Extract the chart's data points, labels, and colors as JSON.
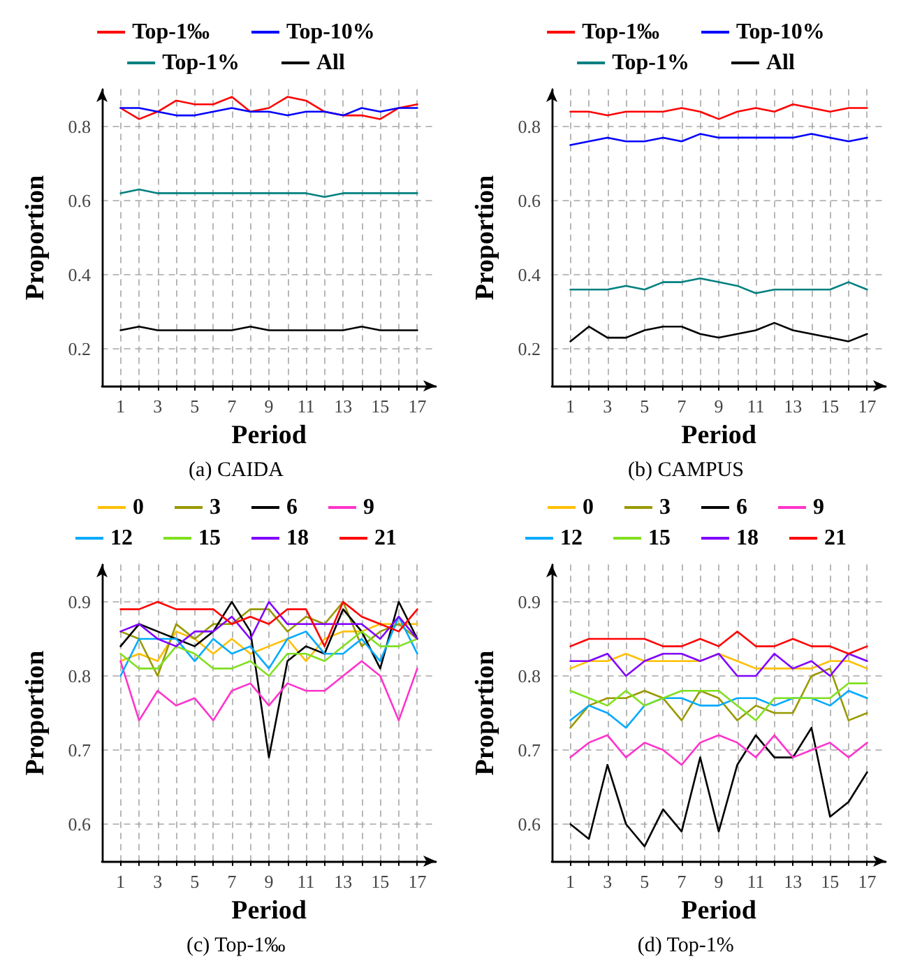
{
  "chart_data": [
    {
      "type": "line",
      "xlabel": "Period",
      "ylabel": "Proportion",
      "annotations": [
        "(a) CAIDA"
      ],
      "xlim": [
        0,
        18
      ],
      "xticks": [
        1,
        {
          "value": 2,
          "label": null
        },
        3,
        {
          "value": 4,
          "label": null
        },
        5,
        {
          "value": 6,
          "label": null
        },
        7,
        {
          "value": 8,
          "label": null
        },
        9,
        {
          "value": 10,
          "label": null
        },
        11,
        {
          "value": 12,
          "label": null
        },
        13,
        {
          "value": 14,
          "label": null
        },
        15,
        {
          "value": 16,
          "label": null
        },
        17
      ],
      "ylim": [
        0.1,
        0.9
      ],
      "yticks": [
        0.2,
        0.4,
        0.6,
        0.8
      ],
      "grid": true,
      "legend": "top",
      "marker": "none",
      "line_style": "solid",
      "x": [
        1,
        2,
        3,
        4,
        5,
        6,
        7,
        8,
        9,
        10,
        11,
        12,
        13,
        14,
        15,
        16,
        17
      ],
      "series": [
        {
          "name": "Top-1‰",
          "color": "#ff0000",
          "values": [
            0.85,
            0.82,
            0.84,
            0.87,
            0.86,
            0.86,
            0.88,
            0.84,
            0.85,
            0.88,
            0.87,
            0.84,
            0.83,
            0.83,
            0.82,
            0.85,
            0.86
          ]
        },
        {
          "name": "Top-10%",
          "color": "#0000ff",
          "values": [
            0.85,
            0.85,
            0.84,
            0.83,
            0.83,
            0.84,
            0.85,
            0.84,
            0.84,
            0.83,
            0.84,
            0.84,
            0.83,
            0.85,
            0.84,
            0.85,
            0.85
          ]
        },
        {
          "name": "Top-1%",
          "color": "#008080",
          "values": [
            0.62,
            0.63,
            0.62,
            0.62,
            0.62,
            0.62,
            0.62,
            0.62,
            0.62,
            0.62,
            0.62,
            0.61,
            0.62,
            0.62,
            0.62,
            0.62,
            0.62
          ]
        },
        {
          "name": "All",
          "color": "#000000",
          "values": [
            0.25,
            0.26,
            0.25,
            0.25,
            0.25,
            0.25,
            0.25,
            0.26,
            0.25,
            0.25,
            0.25,
            0.25,
            0.25,
            0.26,
            0.25,
            0.25,
            0.25
          ]
        }
      ]
    },
    {
      "type": "line",
      "xlabel": "Period",
      "ylabel": "Proportion",
      "annotations": [
        "(b) CAMPUS"
      ],
      "xlim": [
        0,
        18
      ],
      "xticks": [
        1,
        {
          "value": 2,
          "label": null
        },
        3,
        {
          "value": 4,
          "label": null
        },
        5,
        {
          "value": 6,
          "label": null
        },
        7,
        {
          "value": 8,
          "label": null
        },
        9,
        {
          "value": 10,
          "label": null
        },
        11,
        {
          "value": 12,
          "label": null
        },
        13,
        {
          "value": 14,
          "label": null
        },
        15,
        {
          "value": 16,
          "label": null
        },
        17
      ],
      "ylim": [
        0.1,
        0.9
      ],
      "yticks": [
        0.2,
        0.4,
        0.6,
        0.8
      ],
      "grid": true,
      "legend": "top",
      "marker": "none",
      "line_style": "solid",
      "x": [
        1,
        2,
        3,
        4,
        5,
        6,
        7,
        8,
        9,
        10,
        11,
        12,
        13,
        14,
        15,
        16,
        17
      ],
      "series": [
        {
          "name": "Top-1‰",
          "color": "#ff0000",
          "values": [
            0.84,
            0.84,
            0.83,
            0.84,
            0.84,
            0.84,
            0.85,
            0.84,
            0.82,
            0.84,
            0.85,
            0.84,
            0.86,
            0.85,
            0.84,
            0.85,
            0.85
          ]
        },
        {
          "name": "Top-10%",
          "color": "#0000ff",
          "values": [
            0.75,
            0.76,
            0.77,
            0.76,
            0.76,
            0.77,
            0.76,
            0.78,
            0.77,
            0.77,
            0.77,
            0.77,
            0.77,
            0.78,
            0.77,
            0.76,
            0.77
          ]
        },
        {
          "name": "Top-1%",
          "color": "#008080",
          "values": [
            0.36,
            0.36,
            0.36,
            0.37,
            0.36,
            0.38,
            0.38,
            0.39,
            0.38,
            0.37,
            0.35,
            0.36,
            0.36,
            0.36,
            0.36,
            0.38,
            0.36
          ]
        },
        {
          "name": "All",
          "color": "#000000",
          "values": [
            0.22,
            0.26,
            0.23,
            0.23,
            0.25,
            0.26,
            0.26,
            0.24,
            0.23,
            0.24,
            0.25,
            0.27,
            0.25,
            0.24,
            0.23,
            0.22,
            0.24
          ]
        }
      ]
    },
    {
      "type": "line",
      "xlabel": "Period",
      "ylabel": "Proportion",
      "annotations": [
        "(c) Top-1‰"
      ],
      "xlim": [
        0,
        18
      ],
      "xticks": [
        1,
        {
          "value": 2,
          "label": null
        },
        3,
        {
          "value": 4,
          "label": null
        },
        5,
        {
          "value": 6,
          "label": null
        },
        7,
        {
          "value": 8,
          "label": null
        },
        9,
        {
          "value": 10,
          "label": null
        },
        11,
        {
          "value": 12,
          "label": null
        },
        13,
        {
          "value": 14,
          "label": null
        },
        15,
        {
          "value": 16,
          "label": null
        },
        17
      ],
      "ylim": [
        0.55,
        0.95
      ],
      "yticks": [
        0.6,
        0.7,
        0.8,
        0.9
      ],
      "grid": true,
      "legend": "top",
      "marker": "none",
      "line_style": "solid",
      "x": [
        1,
        2,
        3,
        4,
        5,
        6,
        7,
        8,
        9,
        10,
        11,
        12,
        13,
        14,
        15,
        16,
        17
      ],
      "series": [
        {
          "name": "0",
          "color": "#ffbf00",
          "values": [
            0.82,
            0.83,
            0.82,
            0.86,
            0.85,
            0.83,
            0.85,
            0.83,
            0.84,
            0.85,
            0.82,
            0.85,
            0.86,
            0.86,
            0.87,
            0.87,
            0.87
          ]
        },
        {
          "name": "3",
          "color": "#999900",
          "values": [
            0.86,
            0.85,
            0.8,
            0.87,
            0.85,
            0.87,
            0.87,
            0.89,
            0.89,
            0.86,
            0.88,
            0.87,
            0.9,
            0.84,
            0.86,
            0.87,
            0.85
          ]
        },
        {
          "name": "6",
          "color": "#000000",
          "values": [
            0.84,
            0.87,
            0.86,
            0.85,
            0.84,
            0.86,
            0.9,
            0.86,
            0.69,
            0.82,
            0.84,
            0.83,
            0.89,
            0.86,
            0.81,
            0.9,
            0.85
          ]
        },
        {
          "name": "9",
          "color": "#ff33cc",
          "values": [
            0.82,
            0.74,
            0.78,
            0.76,
            0.77,
            0.74,
            0.78,
            0.79,
            0.76,
            0.79,
            0.78,
            0.78,
            0.8,
            0.82,
            0.8,
            0.74,
            0.81
          ]
        },
        {
          "name": "12",
          "color": "#00aaff",
          "values": [
            0.8,
            0.85,
            0.85,
            0.85,
            0.82,
            0.85,
            0.83,
            0.84,
            0.81,
            0.85,
            0.86,
            0.83,
            0.83,
            0.85,
            0.82,
            0.88,
            0.83
          ]
        },
        {
          "name": "15",
          "color": "#80e020",
          "values": [
            0.83,
            0.81,
            0.81,
            0.84,
            0.83,
            0.81,
            0.81,
            0.82,
            0.8,
            0.83,
            0.83,
            0.82,
            0.84,
            0.86,
            0.84,
            0.84,
            0.85
          ]
        },
        {
          "name": "18",
          "color": "#8000ff",
          "values": [
            0.86,
            0.87,
            0.85,
            0.84,
            0.86,
            0.86,
            0.88,
            0.85,
            0.9,
            0.87,
            0.87,
            0.87,
            0.87,
            0.87,
            0.85,
            0.88,
            0.85
          ]
        },
        {
          "name": "21",
          "color": "#ff0000",
          "values": [
            0.89,
            0.89,
            0.9,
            0.89,
            0.89,
            0.89,
            0.87,
            0.88,
            0.87,
            0.89,
            0.89,
            0.84,
            0.9,
            0.88,
            0.87,
            0.86,
            0.89
          ]
        }
      ]
    },
    {
      "type": "line",
      "xlabel": "Period",
      "ylabel": "Proportion",
      "annotations": [
        "(d) Top-1%"
      ],
      "xlim": [
        0,
        18
      ],
      "xticks": [
        1,
        {
          "value": 2,
          "label": null
        },
        3,
        {
          "value": 4,
          "label": null
        },
        5,
        {
          "value": 6,
          "label": null
        },
        7,
        {
          "value": 8,
          "label": null
        },
        9,
        {
          "value": 10,
          "label": null
        },
        11,
        {
          "value": 12,
          "label": null
        },
        13,
        {
          "value": 14,
          "label": null
        },
        15,
        {
          "value": 16,
          "label": null
        },
        17
      ],
      "ylim": [
        0.55,
        0.95
      ],
      "yticks": [
        0.6,
        0.7,
        0.8,
        0.9
      ],
      "grid": true,
      "legend": "top",
      "marker": "none",
      "line_style": "solid",
      "x": [
        1,
        2,
        3,
        4,
        5,
        6,
        7,
        8,
        9,
        10,
        11,
        12,
        13,
        14,
        15,
        16,
        17
      ],
      "series": [
        {
          "name": "0",
          "color": "#ffbf00",
          "values": [
            0.81,
            0.82,
            0.82,
            0.83,
            0.82,
            0.82,
            0.82,
            0.82,
            0.83,
            0.82,
            0.81,
            0.81,
            0.81,
            0.81,
            0.82,
            0.82,
            0.81
          ]
        },
        {
          "name": "3",
          "color": "#999900",
          "values": [
            0.73,
            0.76,
            0.77,
            0.77,
            0.78,
            0.77,
            0.74,
            0.78,
            0.77,
            0.74,
            0.76,
            0.75,
            0.75,
            0.8,
            0.81,
            0.74,
            0.75
          ]
        },
        {
          "name": "6",
          "color": "#000000",
          "values": [
            0.6,
            0.58,
            0.68,
            0.6,
            0.57,
            0.62,
            0.59,
            0.69,
            0.59,
            0.68,
            0.72,
            0.69,
            0.69,
            0.73,
            0.61,
            0.63,
            0.67
          ]
        },
        {
          "name": "9",
          "color": "#ff33cc",
          "values": [
            0.69,
            0.71,
            0.72,
            0.69,
            0.71,
            0.7,
            0.68,
            0.71,
            0.72,
            0.71,
            0.69,
            0.72,
            0.69,
            0.7,
            0.71,
            0.69,
            0.71
          ]
        },
        {
          "name": "12",
          "color": "#00aaff",
          "values": [
            0.74,
            0.76,
            0.75,
            0.73,
            0.76,
            0.77,
            0.77,
            0.76,
            0.76,
            0.77,
            0.77,
            0.76,
            0.77,
            0.77,
            0.76,
            0.78,
            0.77
          ]
        },
        {
          "name": "15",
          "color": "#80e020",
          "values": [
            0.78,
            0.77,
            0.76,
            0.78,
            0.76,
            0.77,
            0.78,
            0.78,
            0.78,
            0.76,
            0.74,
            0.77,
            0.77,
            0.77,
            0.77,
            0.79,
            0.79
          ]
        },
        {
          "name": "18",
          "color": "#8000ff",
          "values": [
            0.82,
            0.82,
            0.83,
            0.8,
            0.82,
            0.83,
            0.83,
            0.82,
            0.83,
            0.8,
            0.8,
            0.83,
            0.81,
            0.82,
            0.8,
            0.83,
            0.82
          ]
        },
        {
          "name": "21",
          "color": "#ff0000",
          "values": [
            0.84,
            0.85,
            0.85,
            0.85,
            0.85,
            0.84,
            0.84,
            0.85,
            0.84,
            0.86,
            0.84,
            0.84,
            0.85,
            0.84,
            0.84,
            0.83,
            0.84
          ]
        }
      ]
    }
  ]
}
